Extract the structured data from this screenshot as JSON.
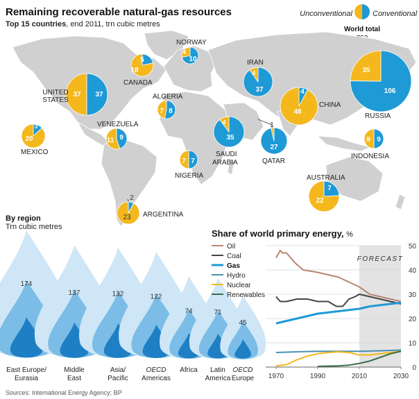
{
  "header": {
    "title": "Remaining recoverable natural-gas resources",
    "subtitle_bold": "Top 15 countries",
    "subtitle_rest": ", end 2011, trn cubic metres"
  },
  "legend_key": {
    "unconventional": "Unconventional",
    "conventional": "Conventional",
    "world_total_label": "World total",
    "world_total_value": "752"
  },
  "colors": {
    "unconventional": "#f4b81d",
    "conventional": "#1e9ad6",
    "land": "#d0d0d0",
    "oil": "#b98572",
    "coal": "#444444",
    "gas": "#1e9ad6",
    "hydro": "#4a8fb0",
    "nuclear": "#f4b81d",
    "renewables": "#3c6e47",
    "forecast": "#e3e3e3"
  },
  "chart_data": [
    {
      "type": "pie",
      "title": "Remaining recoverable natural-gas resources",
      "subtitle": "Top 15 countries, end 2011, trn cubic metres",
      "series_names": [
        "Unconventional",
        "Conventional"
      ],
      "countries": [
        {
          "name": "UNITED STATES",
          "unconventional": 37,
          "conventional": 37
        },
        {
          "name": "CANADA",
          "unconventional": 18,
          "conventional": 5
        },
        {
          "name": "NORWAY",
          "unconventional": 4,
          "conventional": 10
        },
        {
          "name": "MEXICO",
          "unconventional": 20,
          "conventional": 3
        },
        {
          "name": "VENEZUELA",
          "unconventional": 11,
          "conventional": 9
        },
        {
          "name": "ALGERIA",
          "unconventional": 7,
          "conventional": 8
        },
        {
          "name": "NIGERIA",
          "unconventional": 7,
          "conventional": 7
        },
        {
          "name": "ARGENTINA",
          "unconventional": 23,
          "conventional": 2
        },
        {
          "name": "IRAN",
          "unconventional": 4,
          "conventional": 37
        },
        {
          "name": "SAUDI ARABIA",
          "unconventional": 4,
          "conventional": 35
        },
        {
          "name": "QATAR",
          "unconventional": 1,
          "conventional": 27
        },
        {
          "name": "CHINA",
          "unconventional": 48,
          "conventional": 4
        },
        {
          "name": "RUSSIA",
          "unconventional": 35,
          "conventional": 106
        },
        {
          "name": "INDONESIA",
          "unconventional": 9,
          "conventional": 9
        },
        {
          "name": "AUSTRALIA",
          "unconventional": 22,
          "conventional": 7
        }
      ],
      "world_total": {
        "unconventional": 35,
        "conventional": 106,
        "total": 752
      }
    },
    {
      "type": "bar",
      "title": "By region",
      "ylabel": "Trn cubic metres",
      "categories": [
        "East Europe/ Eurasia",
        "Middle East",
        "Asia/ Pacific",
        "OECD Americas",
        "Africa",
        "Latin America",
        "OECD Europe"
      ],
      "values": [
        174,
        137,
        132,
        122,
        74,
        71,
        45
      ]
    },
    {
      "type": "line",
      "title": "Share of world primary energy, %",
      "xlim": [
        1965,
        2030
      ],
      "ylim": [
        0,
        50
      ],
      "xticks": [
        1970,
        1990,
        2010,
        2030
      ],
      "yticks": [
        0,
        10,
        20,
        30,
        40,
        50
      ],
      "annotation": "FORECAST",
      "forecast_range": [
        2010,
        2030
      ],
      "series": [
        {
          "name": "Oil",
          "x": [
            1970,
            1972,
            1973,
            1975,
            1979,
            1983,
            1990,
            1995,
            2000,
            2005,
            2010,
            2015,
            2020,
            2025,
            2030
          ],
          "y": [
            45,
            48,
            47,
            47,
            43,
            40,
            39,
            38,
            37,
            35,
            33,
            30,
            29,
            28,
            27
          ]
        },
        {
          "name": "Coal",
          "x": [
            1970,
            1972,
            1975,
            1980,
            1985,
            1990,
            1995,
            1999,
            2002,
            2005,
            2008,
            2010,
            2015,
            2020,
            2025,
            2030
          ],
          "y": [
            29,
            27,
            27,
            28,
            28,
            27,
            27,
            25,
            25,
            28,
            29,
            30,
            29,
            28,
            27,
            26
          ]
        },
        {
          "name": "Gas",
          "x": [
            1970,
            1975,
            1980,
            1985,
            1990,
            1995,
            2000,
            2005,
            2010,
            2015,
            2020,
            2025,
            2030
          ],
          "y": [
            18,
            19,
            20,
            21,
            22,
            22.5,
            23,
            23.5,
            24,
            25,
            25.5,
            26,
            26.5
          ]
        },
        {
          "name": "Hydro",
          "x": [
            1970,
            1980,
            1990,
            2000,
            2010,
            2020,
            2030
          ],
          "y": [
            6,
            6.3,
            6.5,
            6.5,
            6.5,
            6.7,
            7
          ]
        },
        {
          "name": "Nuclear",
          "x": [
            1970,
            1975,
            1980,
            1985,
            1990,
            1995,
            2000,
            2005,
            2010,
            2015,
            2020,
            2025,
            2030
          ],
          "y": [
            0.5,
            1,
            3,
            4.5,
            5.5,
            6,
            6.3,
            6,
            5,
            5,
            5.5,
            6,
            6.5
          ]
        },
        {
          "name": "Renewables",
          "x": [
            1990,
            1995,
            2000,
            2005,
            2010,
            2015,
            2020,
            2025,
            2030
          ],
          "y": [
            0.3,
            0.4,
            0.5,
            0.8,
            1.5,
            2.5,
            4,
            5.5,
            6.5
          ]
        }
      ]
    }
  ],
  "source": "Sources: International Energy Agency; BP"
}
